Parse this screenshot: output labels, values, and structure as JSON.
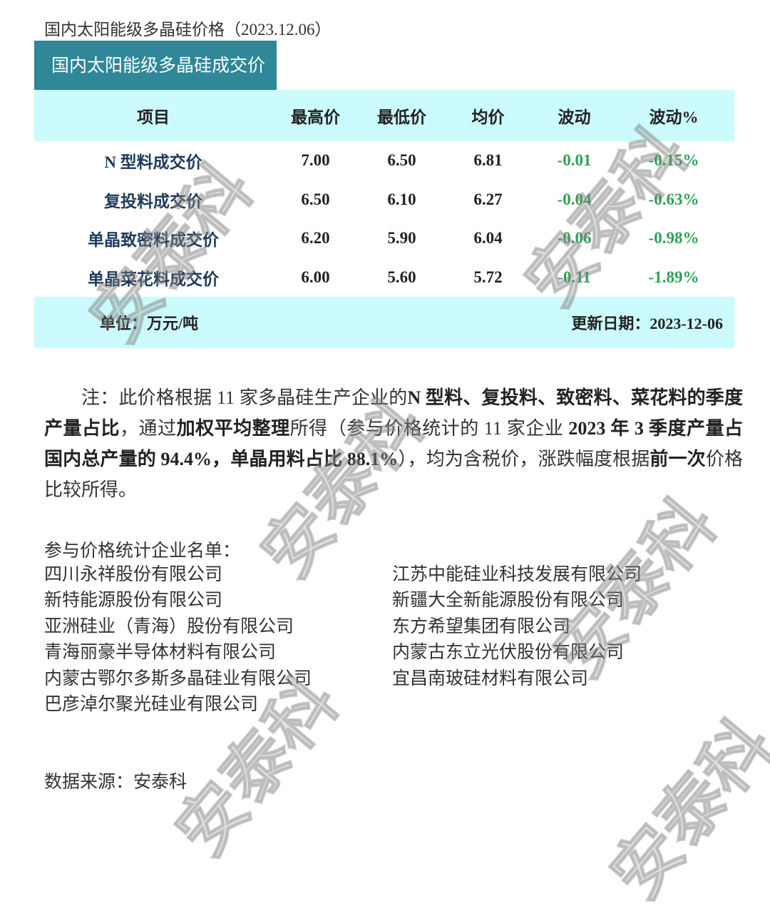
{
  "title": "国内太阳能级多晶硅价格（2023.12.06）",
  "tab_label": "国内太阳能级多晶硅成交价",
  "table": {
    "headers": [
      "项目",
      "最高价",
      "最低价",
      "均价",
      "波动",
      "波动%"
    ],
    "rows": [
      [
        "N 型料成交价",
        "7.00",
        "6.50",
        "6.81",
        "-0.01",
        "-0.15%"
      ],
      [
        "复投料成交价",
        "6.50",
        "6.10",
        "6.27",
        "-0.04",
        "-0.63%"
      ],
      [
        "单晶致密料成交价",
        "6.20",
        "5.90",
        "6.04",
        "-0.06",
        "-0.98%"
      ],
      [
        "单晶菜花料成交价",
        "6.00",
        "5.60",
        "5.72",
        "-0.11",
        "-1.89%"
      ]
    ],
    "unit": "单位：万元/吨",
    "update": "更新日期：2023-12-06"
  },
  "colors": {
    "tab": "#2f8797",
    "band": "#ccfbfd",
    "down": "#2ea05a",
    "item_text": "#1f3b5c"
  },
  "note": [
    {
      "t": "注：此价格根据 11 家多晶硅生产企业的",
      "b": false
    },
    {
      "t": "N 型料、复投料、致密料、菜花料的季度产量占比",
      "b": true
    },
    {
      "t": "，通过",
      "b": false
    },
    {
      "t": "加权平均整理",
      "b": true
    },
    {
      "t": "所得（参与价格统计的 11 家企业 ",
      "b": false
    },
    {
      "t": "2023 年 3 季度产量占国内总产量的 94.4%，单晶用料占比 88.1%",
      "b": true
    },
    {
      "t": "），均为含税价，涨跌幅度根据",
      "b": false
    },
    {
      "t": "前一次",
      "b": true
    },
    {
      "t": "价格比较所得。",
      "b": false
    }
  ],
  "companies_heading": "参与价格统计企业名单：",
  "companies_left": [
    "四川永祥股份有限公司",
    "新特能源股份有限公司",
    "亚洲硅业（青海）股份有限公司",
    "青海丽豪半导体材料有限公司",
    "内蒙古鄂尔多斯多晶硅业有限公司",
    "巴彦淖尔聚光硅业有限公司"
  ],
  "companies_right": [
    "江苏中能硅业科技发展有限公司",
    "新疆大全新能源股份有限公司",
    "东方希望集团有限公司",
    "内蒙古东立光伏股份有限公司",
    "宜昌南玻硅材料有限公司"
  ],
  "source": "数据来源：安泰科",
  "watermark": "安泰科"
}
